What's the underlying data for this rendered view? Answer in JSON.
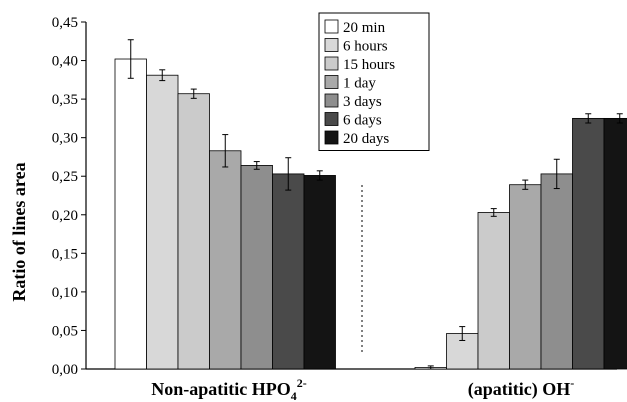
{
  "chart_data": {
    "type": "bar",
    "title": "",
    "xlabel": "",
    "ylabel": "Ratio of lines area",
    "ylim": [
      0,
      0.45
    ],
    "yticks": [
      "0,00",
      "0,05",
      "0,10",
      "0,15",
      "0,20",
      "0,25",
      "0,30",
      "0,35",
      "0,40",
      "0,45"
    ],
    "grid": false,
    "legend_position": "top-center",
    "categories": [
      {
        "main": "Non-apatitic HPO",
        "sub": "4",
        "sup": "2-"
      },
      {
        "main": "(apatitic) OH",
        "sub": "",
        "sup": "-"
      }
    ],
    "series": [
      {
        "name": "20 min",
        "color": "#ffffff",
        "values": [
          0.402,
          0.002
        ],
        "errors": [
          0.025,
          0.002
        ]
      },
      {
        "name": "6 hours",
        "color": "#d8d8d8",
        "values": [
          0.381,
          0.046
        ],
        "errors": [
          0.007,
          0.009
        ]
      },
      {
        "name": "15 hours",
        "color": "#cbcbcb",
        "values": [
          0.357,
          0.203
        ],
        "errors": [
          0.006,
          0.005
        ]
      },
      {
        "name": "1 day",
        "color": "#a9a9a9",
        "values": [
          0.283,
          0.239
        ],
        "errors": [
          0.021,
          0.006
        ]
      },
      {
        "name": "3 days",
        "color": "#8e8e8e",
        "values": [
          0.264,
          0.253
        ],
        "errors": [
          0.005,
          0.019
        ]
      },
      {
        "name": "6 days",
        "color": "#4a4a4a",
        "values": [
          0.253,
          0.325
        ],
        "errors": [
          0.021,
          0.006
        ]
      },
      {
        "name": "20 days",
        "color": "#141414",
        "values": [
          0.251,
          0.325
        ],
        "errors": [
          0.006,
          0.006
        ]
      }
    ],
    "separator": "dashed-vertical"
  }
}
